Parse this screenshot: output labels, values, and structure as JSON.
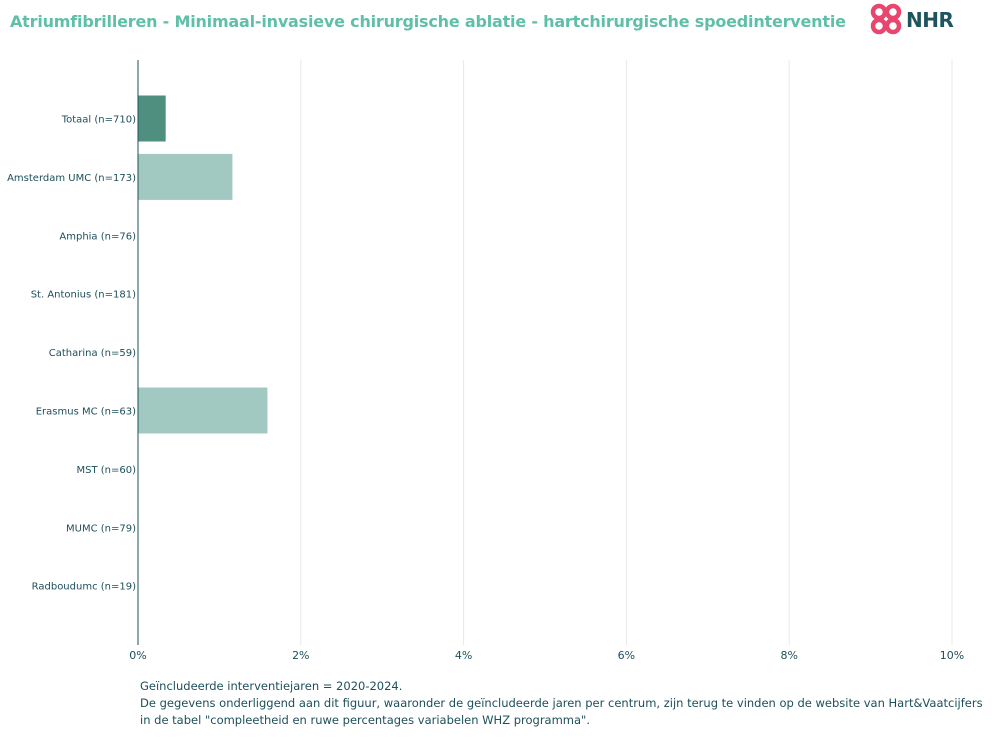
{
  "title": "Atriumfibrilleren - Minimaal-invasieve chirurgische ablatie - hartchirurgische spoedinterventie",
  "logo": {
    "text": "NHR",
    "icon": "nhr-heart-logo-icon",
    "color": "#e8456f"
  },
  "colors": {
    "total_bar": "#4e8f80",
    "center_bar": "#a2c8c2",
    "axis": "#1d4f5a",
    "grid": "#e8e8e8"
  },
  "chart_data": {
    "type": "bar",
    "orientation": "horizontal",
    "categories": [
      "Totaal (n=710)",
      "Amsterdam UMC (n=173)",
      "Amphia (n=76)",
      "St. Antonius (n=181)",
      "Catharina (n=59)",
      "Erasmus MC (n=63)",
      "MST (n=60)",
      "MUMC (n=79)",
      "Radboudumc (n=19)"
    ],
    "values": [
      0.34,
      1.16,
      0,
      0,
      0,
      1.59,
      0,
      0,
      0
    ],
    "xlim": [
      0,
      10
    ],
    "x_ticks": [
      "0%",
      "2%",
      "4%",
      "6%",
      "8%",
      "10%"
    ],
    "grid": true,
    "legend": "none"
  },
  "footnote": {
    "line1": "Geïncludeerde interventiejaren = 2020-2024.",
    "line2": "De gegevens onderliggend aan dit figuur, waaronder de geïncludeerde jaren per centrum, zijn terug te vinden op de website van Hart&Vaatcijfers",
    "line3": "in de tabel \"compleetheid en ruwe percentages variabelen WHZ programma\"."
  }
}
